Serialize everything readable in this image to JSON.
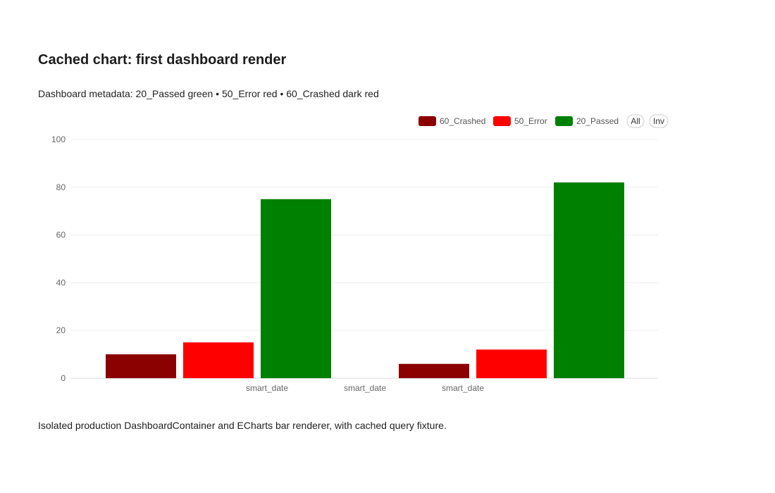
{
  "title": "Cached chart: first dashboard render",
  "subtitle": "Dashboard metadata: 20_Passed green • 50_Error red • 60_Crashed dark red",
  "footer": "Isolated production DashboardContainer and ECharts bar renderer, with cached query fixture.",
  "legend_buttons": {
    "all": "All",
    "inv": "Inv"
  },
  "chart_data": {
    "type": "bar",
    "categories": [
      "smart_date",
      "smart_date",
      "smart_date"
    ],
    "series": [
      {
        "name": "60_Crashed",
        "color": "#8b0000",
        "values": [
          10,
          null,
          6
        ]
      },
      {
        "name": "50_Error",
        "color": "#ff0000",
        "values": [
          15,
          null,
          12
        ]
      },
      {
        "name": "20_Passed",
        "color": "#008000",
        "values": [
          75,
          null,
          82
        ]
      }
    ],
    "ylim": [
      0,
      100
    ],
    "yticks": [
      0,
      20,
      40,
      60,
      80,
      100
    ],
    "legend_position": "top-right",
    "grid": true
  }
}
